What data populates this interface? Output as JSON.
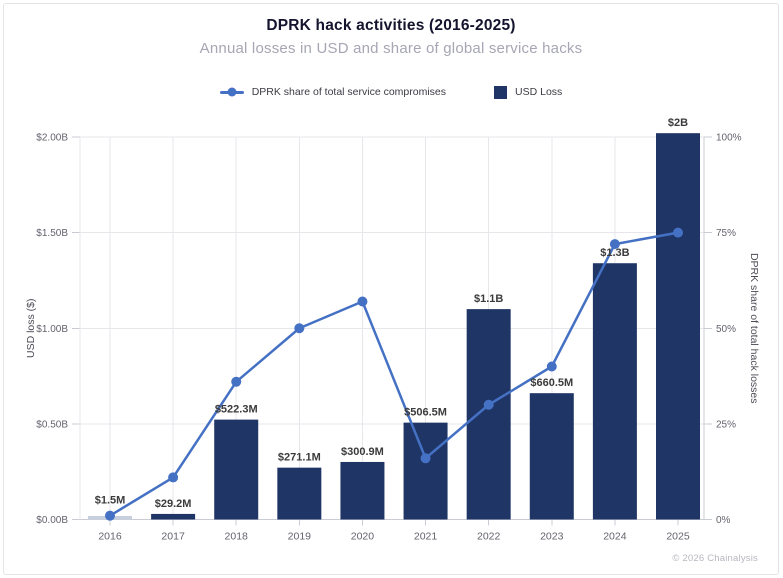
{
  "footer": "© 2026 Chainalysis",
  "chart_data": {
    "type": "combo",
    "title": "DPRK hack activities (2016-2025)",
    "subtitle": "Annual losses in USD and share of global service hacks",
    "legend": {
      "line_label": "DPRK share of total service compromises",
      "bar_label": "USD Loss",
      "position": "top"
    },
    "grid": true,
    "categories": [
      "2016",
      "2017",
      "2018",
      "2019",
      "2020",
      "2021",
      "2022",
      "2023",
      "2024",
      "2025"
    ],
    "series": [
      {
        "name": "USD Loss",
        "type": "bar",
        "axis": "left",
        "unit": "USD billions",
        "values": [
          0.0015,
          0.0292,
          0.5223,
          0.2711,
          0.3009,
          0.5065,
          1.1,
          0.6605,
          1.34,
          2.02
        ],
        "labels": [
          "$1.5M",
          "$29.2M",
          "$522.3M",
          "$271.1M",
          "$300.9M",
          "$506.5M",
          "$1.1B",
          "$660.5M",
          "$1.3B",
          "$2B"
        ]
      },
      {
        "name": "DPRK share of total service compromises",
        "type": "line",
        "axis": "right",
        "unit": "percent",
        "values": [
          1,
          11,
          36,
          50,
          57,
          16,
          30,
          40,
          72,
          75
        ]
      }
    ],
    "left_axis": {
      "label": "USD loss ($)",
      "ticks": [
        "$0.00B",
        "$0.50B",
        "$1.00B",
        "$1.50B",
        "$2.00B"
      ],
      "range": [
        0,
        2
      ]
    },
    "right_axis": {
      "label": "DPRK share of total hack losses",
      "ticks": [
        "0%",
        "25%",
        "50%",
        "75%",
        "100%"
      ],
      "range": [
        0,
        100
      ]
    },
    "colors": {
      "bar": "#1f3566",
      "bar_faint": "#c7cfdf",
      "line": "#4571c4",
      "grid": "#e7e7eb",
      "axis": "#c9ccd4",
      "tick_text": "#63636d",
      "axis_title": "#4b4b55",
      "value_label": "#3b3b3b"
    }
  }
}
